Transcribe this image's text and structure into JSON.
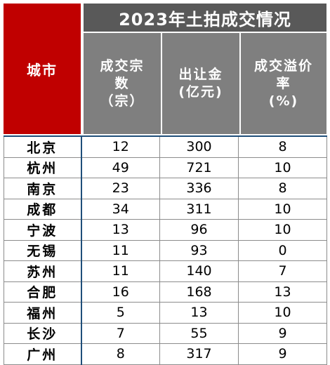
{
  "table": {
    "title": "2023年土拍成交情况",
    "city_header": "城市",
    "columns": [
      "成交宗\n数\n（宗）",
      "出让金\n(亿元)",
      "成交溢价\n率\n(%)"
    ],
    "rows": [
      {
        "city": "北京",
        "deals": "12",
        "revenue": "300",
        "premium": "8"
      },
      {
        "city": "杭州",
        "deals": "49",
        "revenue": "721",
        "premium": "10"
      },
      {
        "city": "南京",
        "deals": "23",
        "revenue": "336",
        "premium": "8"
      },
      {
        "city": "成都",
        "deals": "34",
        "revenue": "311",
        "premium": "10"
      },
      {
        "city": "宁波",
        "deals": "13",
        "revenue": "96",
        "premium": "10"
      },
      {
        "city": "无锡",
        "deals": "11",
        "revenue": "93",
        "premium": "0"
      },
      {
        "city": "苏州",
        "deals": "11",
        "revenue": "140",
        "premium": "7"
      },
      {
        "city": "合肥",
        "deals": "16",
        "revenue": "168",
        "premium": "13"
      },
      {
        "city": "福州",
        "deals": "5",
        "revenue": "13",
        "premium": "10"
      },
      {
        "city": "长沙",
        "deals": "7",
        "revenue": "55",
        "premium": "9"
      },
      {
        "city": "广州",
        "deals": "8",
        "revenue": "317",
        "premium": "9"
      }
    ]
  },
  "colors": {
    "city_header_bg": "#c00000",
    "title_bg": "#595959",
    "column_header_bg": "#7f7f7f"
  }
}
